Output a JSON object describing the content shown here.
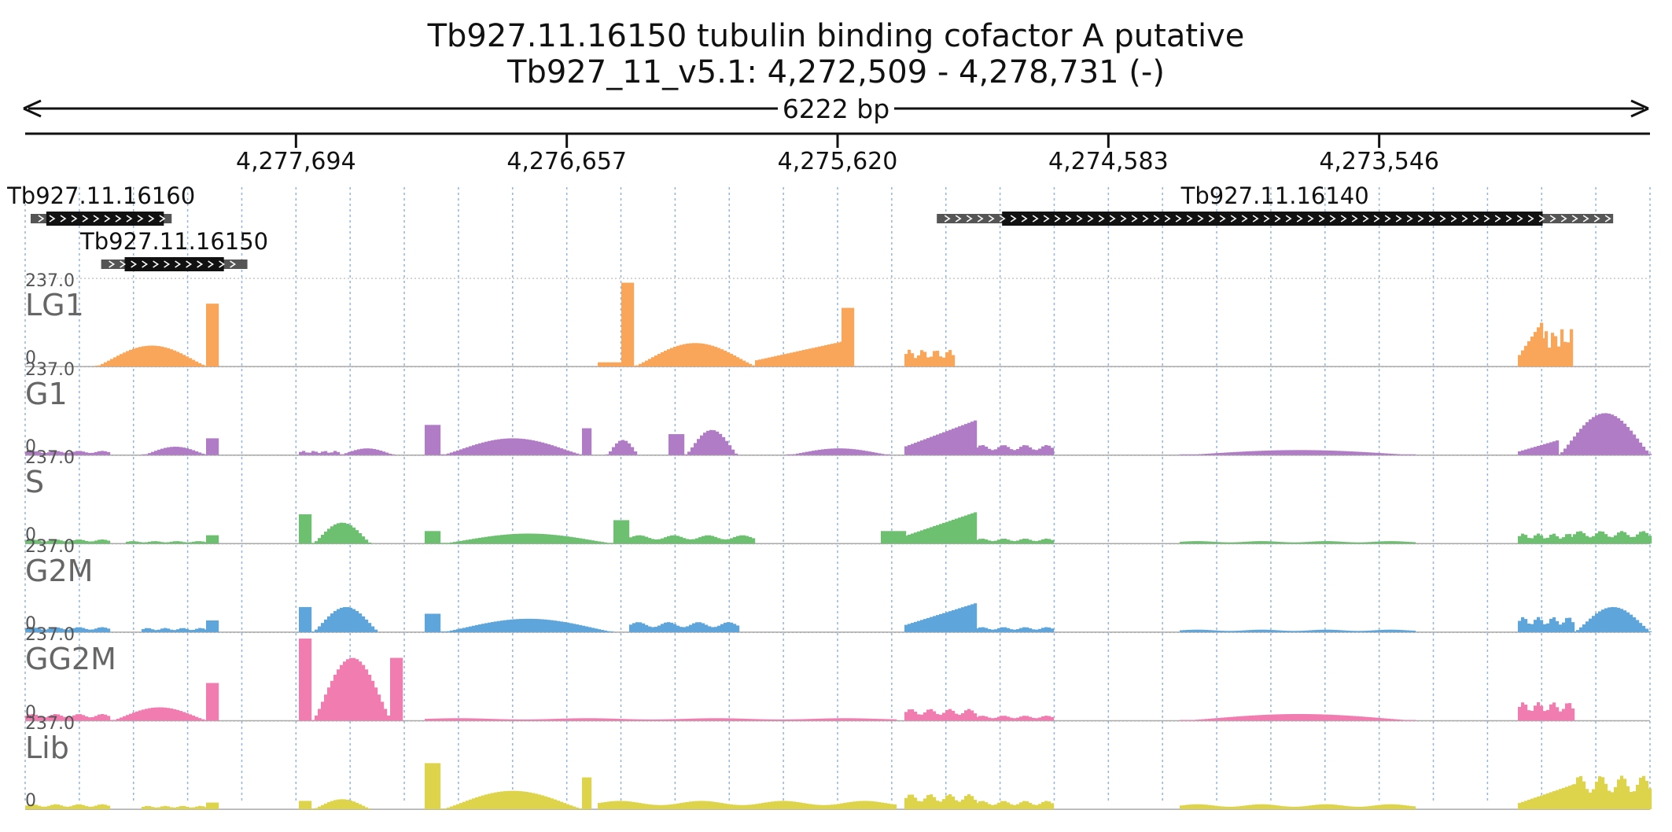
{
  "header": {
    "gene_title": "Tb927.11.16150  tubulin binding cofactor A  putative",
    "region_title": "Tb927_11_v5.1: 4,272,509 - 4,278,731 (-)",
    "span_label": "6222 bp"
  },
  "axis": {
    "region_start": 4272509,
    "region_end": 4278731,
    "reversed": true,
    "ticks": [
      {
        "label": "4,277,694",
        "pos": 4277694
      },
      {
        "label": "4,276,657",
        "pos": 4276657
      },
      {
        "label": "4,275,620",
        "pos": 4275620
      },
      {
        "label": "4,274,583",
        "pos": 4274583
      },
      {
        "label": "4,273,546",
        "pos": 4273546
      }
    ]
  },
  "genes": [
    {
      "name": "Tb927.11.16160",
      "start": 4278170,
      "end": 4278710,
      "cds_start": 4278200,
      "cds_end": 4278650
    },
    {
      "name": "Tb927.11.16150",
      "start": 4277880,
      "end": 4278440,
      "cds_start": 4277970,
      "cds_end": 4278350
    },
    {
      "name": "Tb927.11.16140",
      "start": 4272650,
      "end": 4275240,
      "cds_start": 4272920,
      "cds_end": 4274990
    }
  ],
  "tracks": {
    "max_label": "237.0",
    "min_label": "0",
    "items": [
      {
        "name": "LG1",
        "color": "#f9a65a"
      },
      {
        "name": "G1",
        "color": "#b07cc6"
      },
      {
        "name": "S",
        "color": "#6cc070"
      },
      {
        "name": "G2M",
        "color": "#5da5da"
      },
      {
        "name": "GG2M",
        "color": "#f17cb0"
      },
      {
        "name": "Lib",
        "color": "#ddd44c"
      }
    ]
  }
}
